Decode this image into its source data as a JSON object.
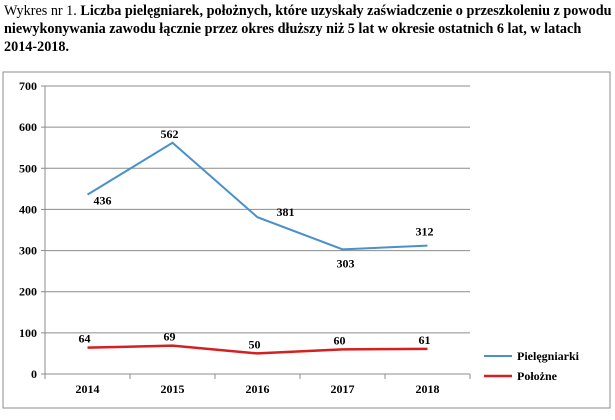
{
  "caption": {
    "prefix": "Wykres nr 1. ",
    "title": "Liczba pielęgniarek, położnych, które uzyskały zaświadczenie o przeszkoleniu z powodu niewykonywania zawodu łącznie przez okres dłuższy niż 5 lat w okresie ostatnich 6 lat, w latach 2014-2018."
  },
  "chart_data": {
    "type": "line",
    "title": "",
    "xlabel": "",
    "ylabel": "",
    "categories": [
      "2014",
      "2015",
      "2016",
      "2017",
      "2018"
    ],
    "ylim": [
      0,
      700
    ],
    "yticks": [
      0,
      100,
      200,
      300,
      400,
      500,
      600,
      700
    ],
    "grid": true,
    "legend_position": "right",
    "series": [
      {
        "name": "Pielęgniarki",
        "values": [
          436,
          562,
          381,
          303,
          312
        ],
        "color": "#4a90cc"
      },
      {
        "name": "Położne",
        "values": [
          64,
          69,
          50,
          60,
          61
        ],
        "color": "#d42020"
      }
    ]
  }
}
